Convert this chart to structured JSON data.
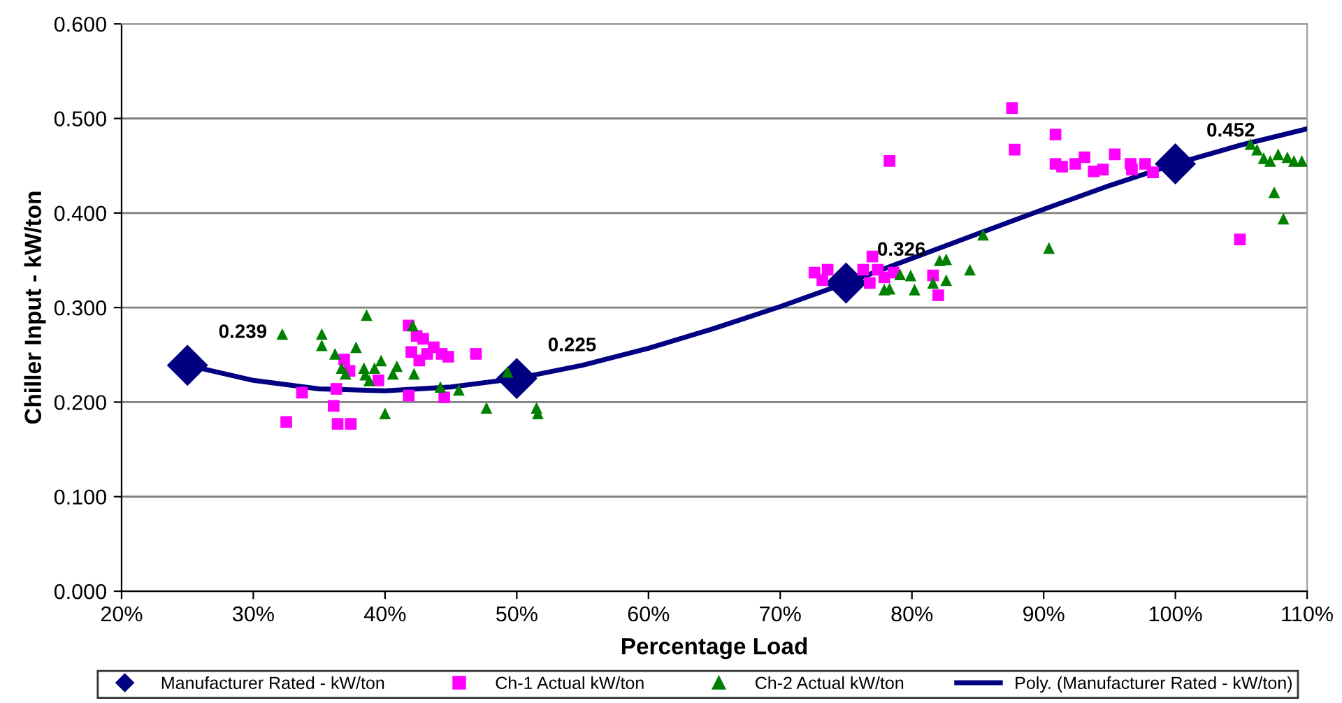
{
  "chart_data": {
    "type": "scatter",
    "xlabel": "Percentage Load",
    "ylabel": "Chiller Input - kW/ton",
    "xlim": [
      20,
      110
    ],
    "xticks": [
      {
        "value": 20,
        "label": "20%"
      },
      {
        "value": 30,
        "label": "30%"
      },
      {
        "value": 40,
        "label": "40%"
      },
      {
        "value": 50,
        "label": "50%"
      },
      {
        "value": 60,
        "label": "60%"
      },
      {
        "value": 70,
        "label": "70%"
      },
      {
        "value": 80,
        "label": "80%"
      },
      {
        "value": 90,
        "label": "90%"
      },
      {
        "value": 100,
        "label": "100%"
      },
      {
        "value": 110,
        "label": "110%"
      }
    ],
    "ylim": [
      0,
      0.6
    ],
    "yticks": [
      {
        "value": 0,
        "label": "0.000"
      },
      {
        "value": 0.1,
        "label": "0.100"
      },
      {
        "value": 0.2,
        "label": "0.200"
      },
      {
        "value": 0.3,
        "label": "0.300"
      },
      {
        "value": 0.4,
        "label": "0.400"
      },
      {
        "value": 0.5,
        "label": "0.500"
      },
      {
        "value": 0.6,
        "label": "0.600"
      }
    ],
    "grid": "y",
    "legend": "bottom",
    "series": [
      {
        "name": "Manufacturer Rated - kW/ton",
        "marker": "diamond",
        "color": "#000080",
        "data_labels": true,
        "x": [
          25,
          50,
          75,
          100
        ],
        "values": [
          0.239,
          0.225,
          0.326,
          0.452
        ]
      },
      {
        "name": "Ch-1 Actual kW/ton",
        "marker": "square",
        "color": "#ff00ff",
        "x": [
          32.5,
          33.7,
          36.1,
          36.4,
          37.4,
          36.9,
          36.3,
          39.5,
          42.0,
          41.8,
          42.4,
          42.9,
          43.7,
          44.3,
          44.8,
          43.2,
          42.6,
          46.9,
          41.8,
          44.5,
          37.3,
          72.6,
          73.6,
          73.2,
          77.0,
          76.3,
          77.4,
          76.8,
          77.9,
          78.6,
          81.6,
          82.0,
          78.3,
          87.6,
          87.8,
          90.9,
          90.9,
          91.4,
          92.4,
          93.1,
          93.8,
          94.5,
          95.4,
          96.6,
          96.7,
          97.7,
          98.3,
          104.9
        ],
        "values": [
          0.179,
          0.21,
          0.196,
          0.177,
          0.177,
          0.245,
          0.214,
          0.223,
          0.253,
          0.281,
          0.27,
          0.267,
          0.258,
          0.251,
          0.248,
          0.251,
          0.244,
          0.251,
          0.207,
          0.205,
          0.233,
          0.337,
          0.34,
          0.329,
          0.354,
          0.34,
          0.34,
          0.326,
          0.332,
          0.337,
          0.334,
          0.313,
          0.455,
          0.511,
          0.467,
          0.483,
          0.452,
          0.449,
          0.452,
          0.459,
          0.444,
          0.446,
          0.462,
          0.452,
          0.446,
          0.452,
          0.443,
          0.372
        ]
      },
      {
        "name": "Ch-2 Actual kW/ton",
        "marker": "triangle",
        "color": "#008000",
        "x": [
          32.2,
          35.2,
          35.2,
          38.6,
          36.2,
          37.8,
          36.7,
          37.0,
          38.4,
          38.5,
          38.8,
          39.2,
          39.7,
          40.6,
          40.9,
          42.1,
          42.2,
          40.0,
          44.2,
          45.6,
          47.7,
          49.3,
          51.5,
          51.6,
          77.9,
          78.3,
          79.1,
          79.9,
          80.2,
          81.6,
          82.1,
          82.6,
          82.6,
          84.4,
          85.4,
          90.4,
          105.7,
          106.2,
          106.7,
          107.2,
          107.8,
          108.5,
          109.0,
          109.6,
          107.5,
          108.2
        ],
        "values": [
          0.272,
          0.272,
          0.26,
          0.292,
          0.251,
          0.258,
          0.236,
          0.23,
          0.236,
          0.229,
          0.223,
          0.236,
          0.244,
          0.23,
          0.238,
          0.281,
          0.23,
          0.188,
          0.216,
          0.213,
          0.194,
          0.232,
          0.194,
          0.188,
          0.319,
          0.32,
          0.335,
          0.334,
          0.319,
          0.326,
          0.35,
          0.351,
          0.329,
          0.34,
          0.377,
          0.363,
          0.473,
          0.467,
          0.458,
          0.455,
          0.462,
          0.459,
          0.455,
          0.455,
          0.422,
          0.394
        ]
      },
      {
        "name": "Poly. (Manufacturer Rated - kW/ton)",
        "type": "line",
        "marker": "none",
        "line_style": "solid",
        "color": "#000080",
        "x": [
          25,
          30,
          35,
          40,
          45,
          50,
          55,
          60,
          65,
          70,
          75,
          80,
          85,
          90,
          95,
          100,
          105,
          110
        ],
        "values": [
          0.239,
          0.223,
          0.214,
          0.212,
          0.216,
          0.225,
          0.239,
          0.257,
          0.278,
          0.301,
          0.326,
          0.352,
          0.378,
          0.404,
          0.429,
          0.452,
          0.472,
          0.489
        ]
      }
    ]
  }
}
